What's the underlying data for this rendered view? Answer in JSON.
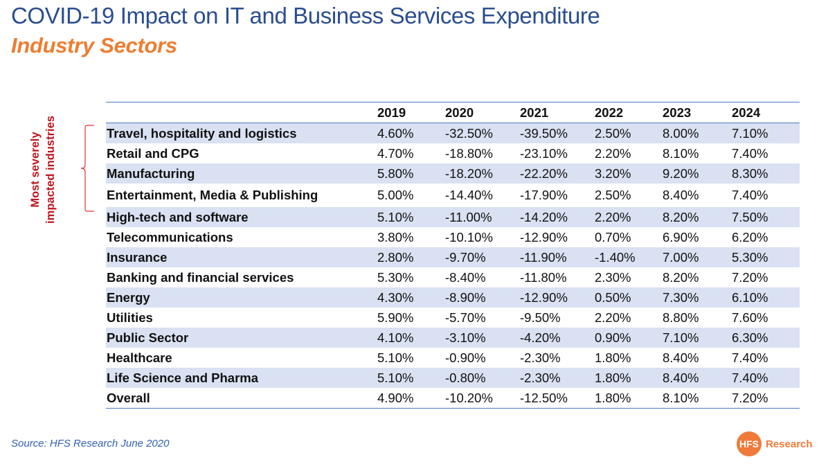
{
  "header": {
    "title": "COVID-19 Impact on IT and Business Services Expenditure",
    "subtitle": "Industry Sectors"
  },
  "annotation": {
    "line1": "Most severely",
    "line2": "impacted industries",
    "color": "#c0141c",
    "applies_to": [
      "Travel, hospitality and logistics",
      "Retail and CPG",
      "Manufacturing",
      "Entertainment, Media & Publishing"
    ]
  },
  "footer": {
    "source": "Source: HFS Research June 2020",
    "logo_mark": "HFS",
    "logo_word": "Research"
  },
  "colors": {
    "title": "#2a4d8f",
    "subtitle": "#ed7d31",
    "band": "#d9e1f2",
    "rule": "#4a78c8",
    "brand": "#ef7a3a"
  },
  "chart_data": {
    "type": "table",
    "title": "COVID-19 Impact on IT and Business Services Expenditure",
    "subtitle": "Industry Sectors",
    "columns": [
      "",
      "2019",
      "2020",
      "2021",
      "2022",
      "2023",
      "2024"
    ],
    "rows": [
      {
        "category": "Travel, hospitality and logistics",
        "values": [
          "4.60%",
          "-32.50%",
          "-39.50%",
          "2.50%",
          "8.00%",
          "7.10%"
        ]
      },
      {
        "category": "Retail and CPG",
        "values": [
          "4.70%",
          "-18.80%",
          "-23.10%",
          "2.20%",
          "8.10%",
          "7.40%"
        ]
      },
      {
        "category": "Manufacturing",
        "values": [
          "5.80%",
          "-18.20%",
          "-22.20%",
          "3.20%",
          "9.20%",
          "8.30%"
        ]
      },
      {
        "category": "Entertainment, Media & Publishing",
        "values": [
          "5.00%",
          "-14.40%",
          "-17.90%",
          "2.50%",
          "8.40%",
          "7.40%"
        ]
      },
      {
        "category": "High-tech and software",
        "values": [
          "5.10%",
          "-11.00%",
          "-14.20%",
          "2.20%",
          "8.20%",
          "7.50%"
        ]
      },
      {
        "category": "Telecommunications",
        "values": [
          "3.80%",
          "-10.10%",
          "-12.90%",
          "0.70%",
          "6.90%",
          "6.20%"
        ]
      },
      {
        "category": "Insurance",
        "values": [
          "2.80%",
          "-9.70%",
          "-11.90%",
          "-1.40%",
          "7.00%",
          "5.30%"
        ]
      },
      {
        "category": "Banking and financial services",
        "values": [
          "5.30%",
          "-8.40%",
          "-11.80%",
          "2.30%",
          "8.20%",
          "7.20%"
        ]
      },
      {
        "category": "Energy",
        "values": [
          "4.30%",
          "-8.90%",
          "-12.90%",
          "0.50%",
          "7.30%",
          "6.10%"
        ]
      },
      {
        "category": "Utilities",
        "values": [
          "5.90%",
          "-5.70%",
          "-9.50%",
          "2.20%",
          "8.80%",
          "7.60%"
        ]
      },
      {
        "category": "Public Sector",
        "values": [
          "4.10%",
          "-3.10%",
          "-4.20%",
          "0.90%",
          "7.10%",
          "6.30%"
        ]
      },
      {
        "category": "Healthcare",
        "values": [
          "5.10%",
          "-0.90%",
          "-2.30%",
          "1.80%",
          "8.40%",
          "7.40%"
        ]
      },
      {
        "category": "Life Science and Pharma",
        "values": [
          "5.10%",
          "-0.80%",
          "-2.30%",
          "1.80%",
          "8.40%",
          "7.40%"
        ]
      },
      {
        "category": "Overall",
        "values": [
          "4.90%",
          "-10.20%",
          "-12.50%",
          "1.80%",
          "8.10%",
          "7.20%"
        ]
      }
    ]
  }
}
